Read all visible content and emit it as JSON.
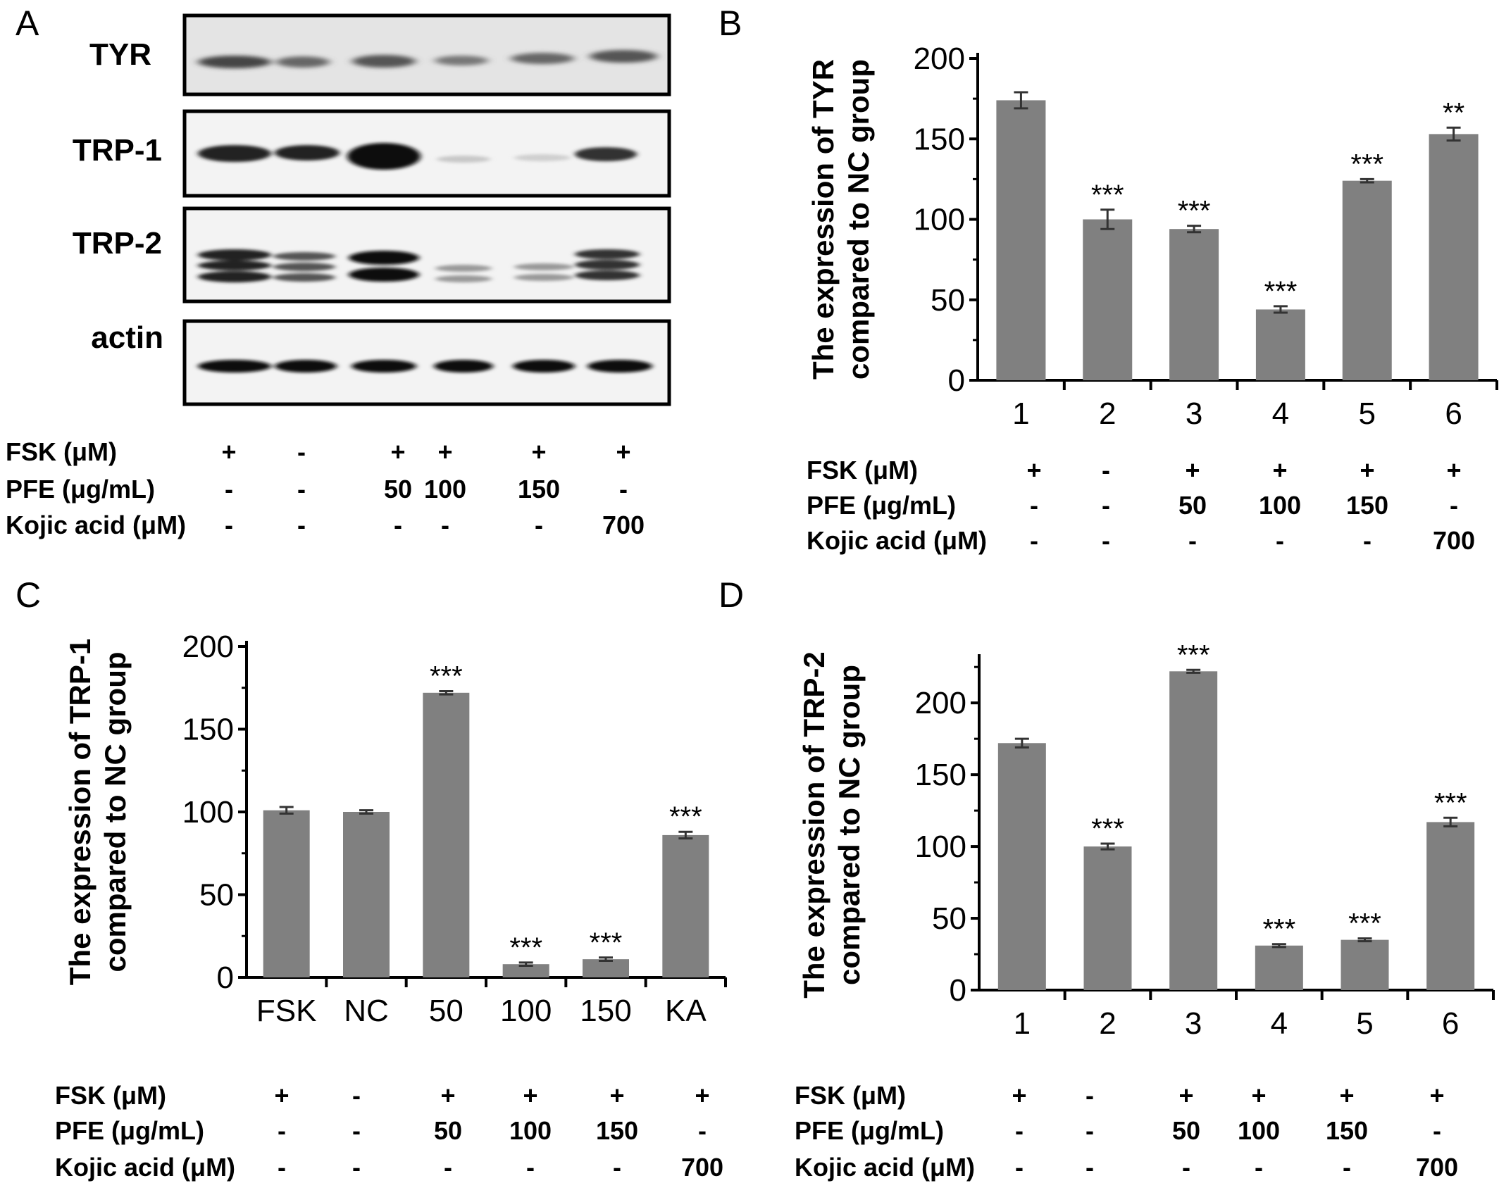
{
  "panels": {
    "A": "A",
    "B": "B",
    "C": "C",
    "D": "D"
  },
  "blot": {
    "labels": [
      "TYR",
      "TRP-1",
      "TRP-2",
      "actin"
    ]
  },
  "treatment_table": {
    "row_labels": [
      "FSK (μM)",
      "PFE (μg/mL)",
      "Kojic acid (μM)"
    ],
    "rows": [
      [
        "+",
        "-",
        "+",
        "+",
        "+",
        "+"
      ],
      [
        "-",
        "-",
        "50",
        "100",
        "150",
        "-"
      ],
      [
        "-",
        "-",
        "-",
        "-",
        "-",
        "700"
      ]
    ]
  },
  "colors": {
    "bar": "#808080",
    "axis": "#000000",
    "error": "#333333"
  },
  "chart_data": [
    {
      "panel": "B",
      "type": "bar",
      "categories": [
        "1",
        "2",
        "3",
        "4",
        "5",
        "6"
      ],
      "values": [
        174,
        100,
        94,
        44,
        124,
        153
      ],
      "errors": [
        5,
        6,
        2,
        2,
        1,
        4
      ],
      "significance": [
        "",
        "***",
        "***",
        "***",
        "***",
        "**"
      ],
      "ylabel": [
        "The expression of TYR",
        "compared to NC group"
      ],
      "yticks": [
        0,
        50,
        100,
        150,
        200
      ],
      "ylim": [
        0,
        200
      ]
    },
    {
      "panel": "C",
      "type": "bar",
      "categories": [
        "FSK",
        "NC",
        "50",
        "100",
        "150",
        "KA"
      ],
      "values": [
        101,
        100,
        172,
        8,
        11,
        86
      ],
      "errors": [
        2,
        1,
        1,
        1,
        1,
        2
      ],
      "significance": [
        "",
        "",
        "***",
        "***",
        "***",
        "***"
      ],
      "ylabel": [
        "The expression of TRP-1",
        "compared to NC group"
      ],
      "yticks": [
        0,
        50,
        100,
        150,
        200
      ],
      "ylim": [
        0,
        200
      ]
    },
    {
      "panel": "D",
      "type": "bar",
      "categories": [
        "1",
        "2",
        "3",
        "4",
        "5",
        "6"
      ],
      "values": [
        172,
        100,
        222,
        31,
        35,
        117
      ],
      "errors": [
        3,
        2,
        1,
        1,
        1,
        3
      ],
      "significance": [
        "",
        "***",
        "***",
        "***",
        "***",
        "***"
      ],
      "ylabel": [
        "The expression of TRP-2",
        "compared to NC group"
      ],
      "yticks": [
        0,
        50,
        100,
        150,
        200
      ],
      "ylim": [
        0,
        230
      ]
    }
  ]
}
